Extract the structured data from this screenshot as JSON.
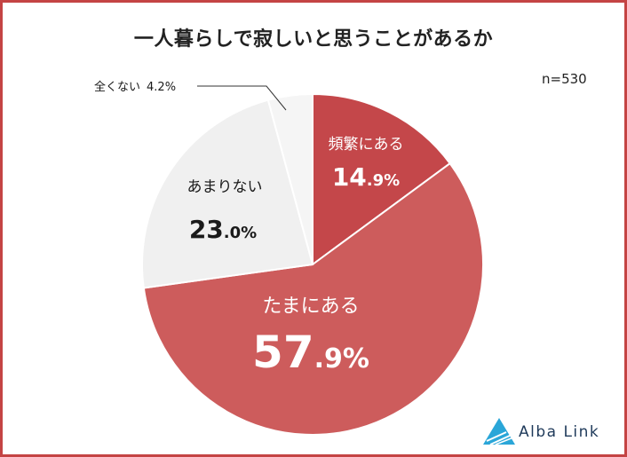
{
  "title": "一人暮らしで寂しいと思うことがあるか",
  "sample": "n=530",
  "logo_text": "Alba Link",
  "colors": {
    "border": "#c44444"
  },
  "chart_data": {
    "type": "pie",
    "title": "一人暮らしで寂しいと思うことがあるか",
    "slices": [
      {
        "label": "頻繁にある",
        "value": 14.9,
        "int": "14",
        "dec": ".9%",
        "color": "#c4474a",
        "text_color": "#ffffff"
      },
      {
        "label": "たまにある",
        "value": 57.9,
        "int": "57",
        "dec": ".9%",
        "color": "#cd5c5c",
        "text_color": "#ffffff"
      },
      {
        "label": "あまりない",
        "value": 23.0,
        "int": "23",
        "dec": ".0%",
        "color": "#f0f0f0",
        "text_color": "#1a1a1a"
      },
      {
        "label": "全くない",
        "value": 4.2,
        "full": "4.2%",
        "color": "#f5f5f5",
        "text_color": "#1a1a1a"
      }
    ]
  }
}
